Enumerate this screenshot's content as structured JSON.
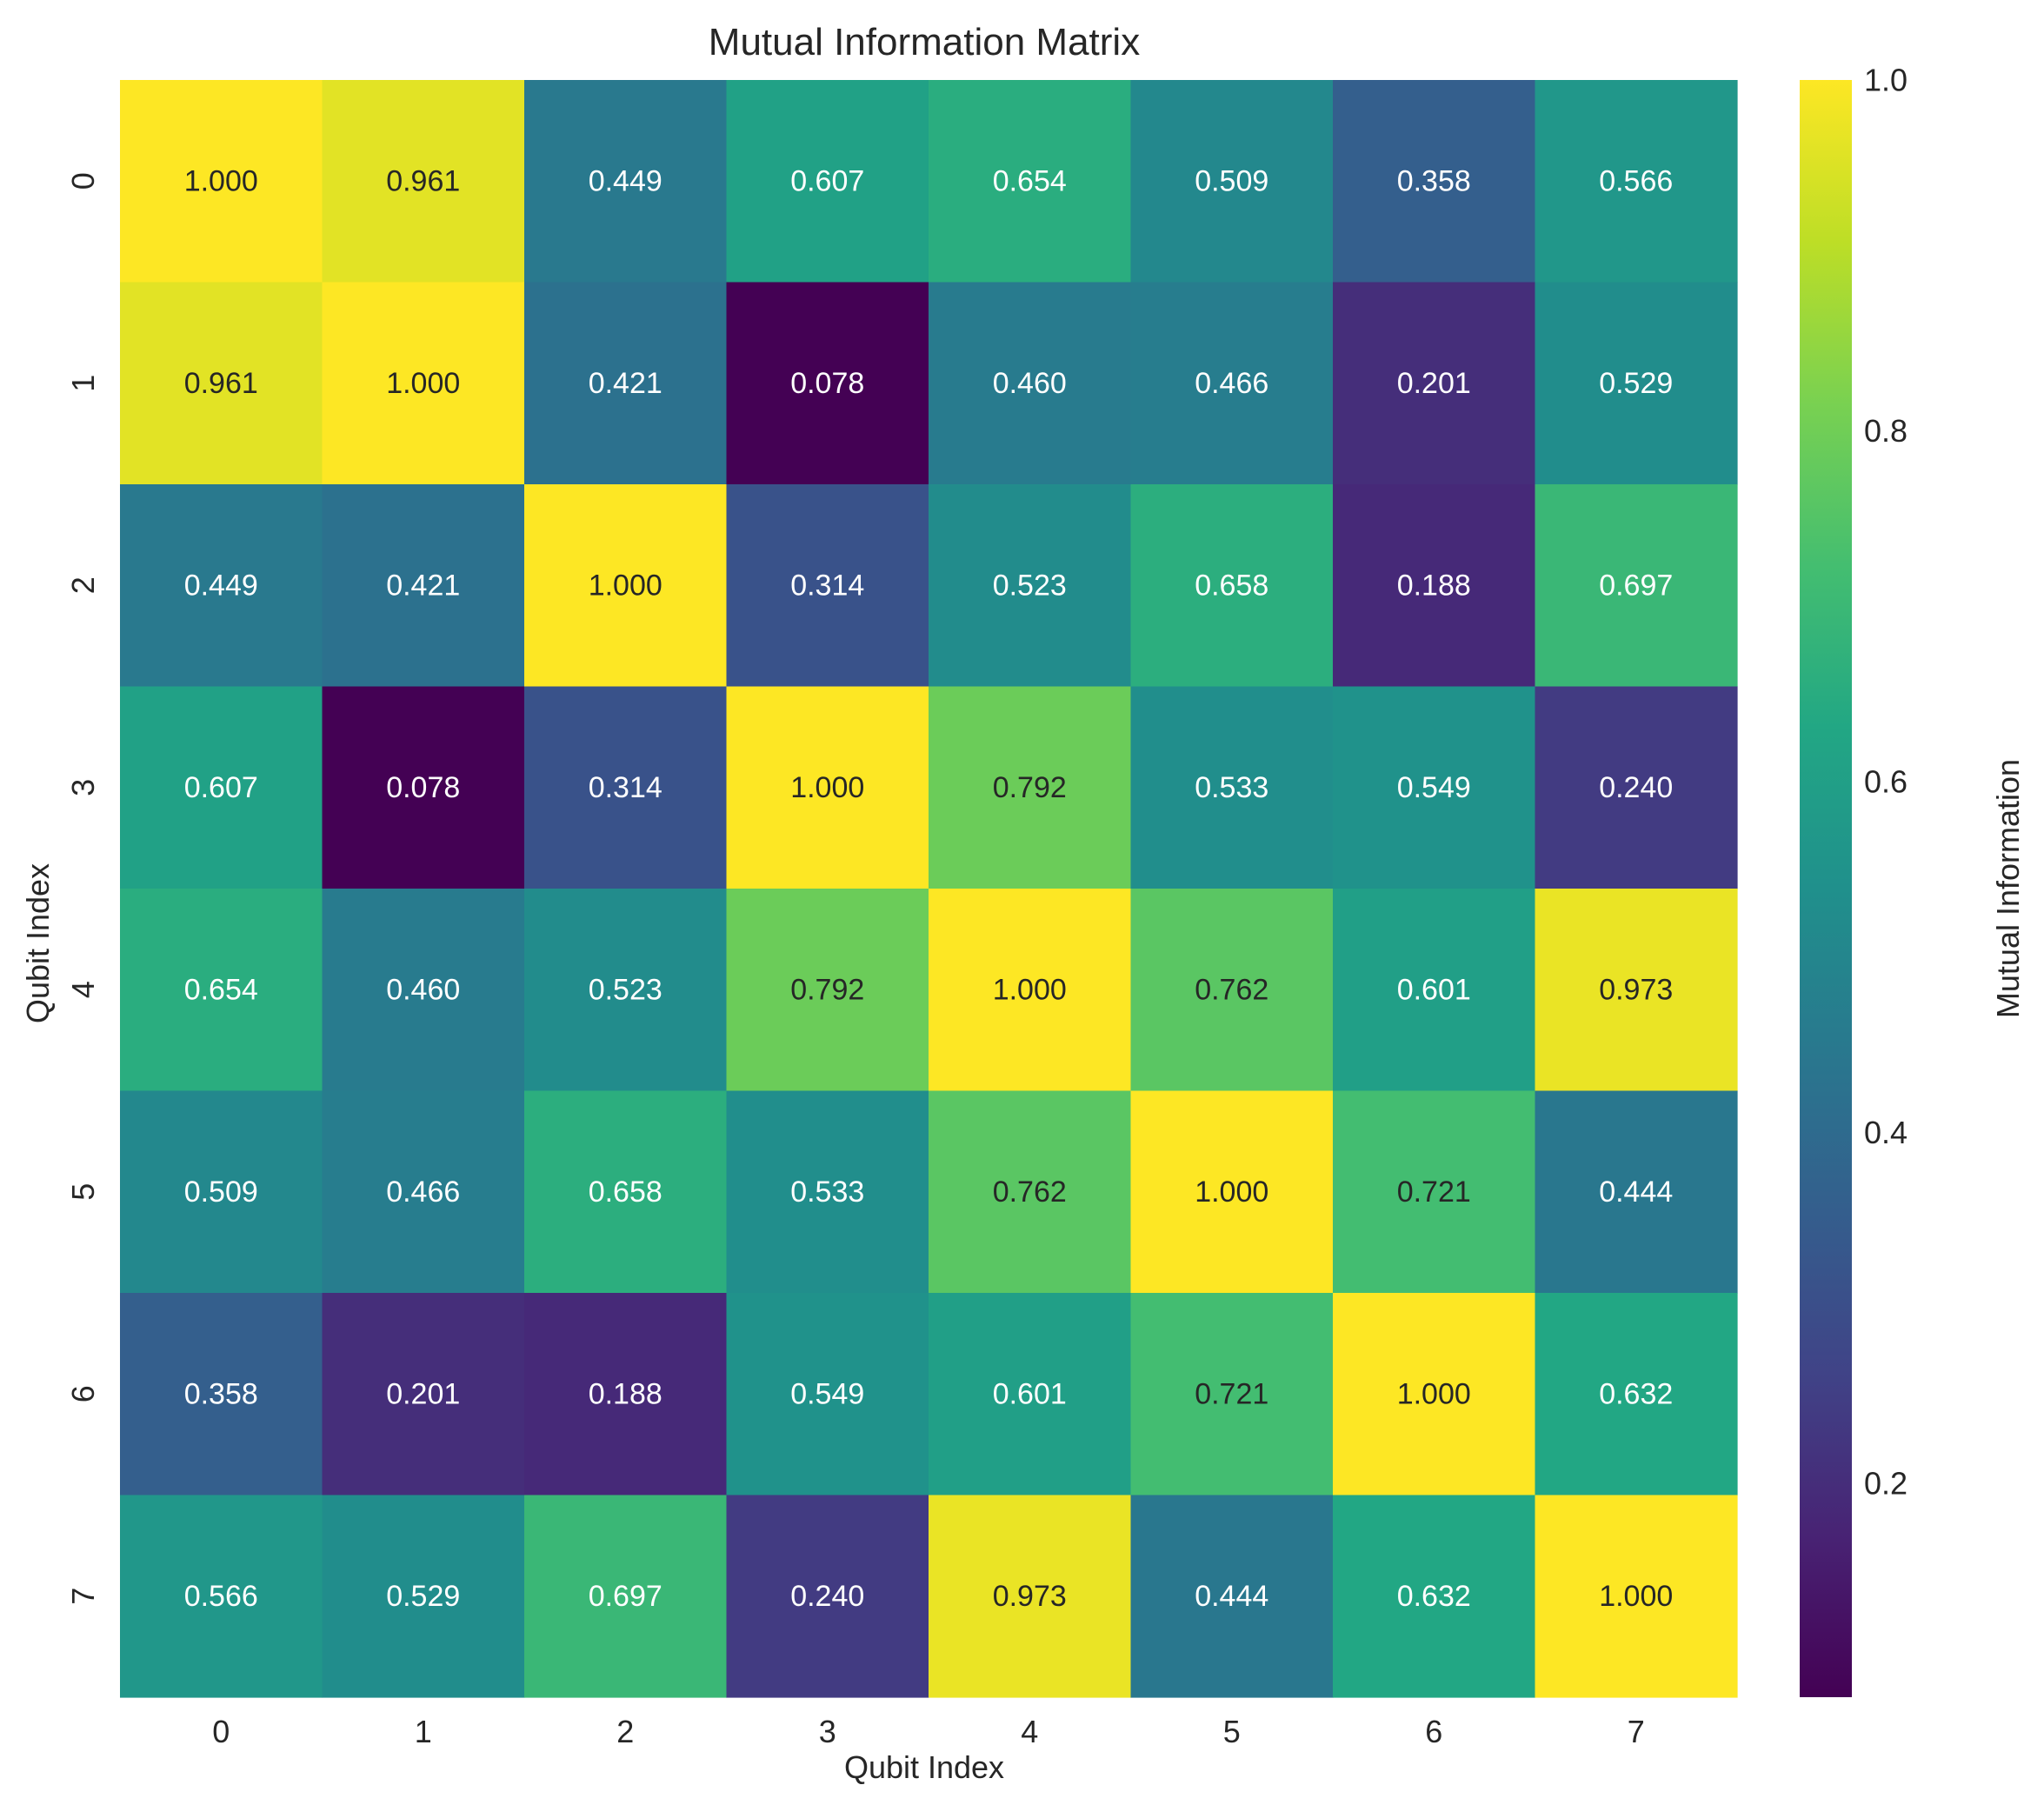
{
  "chart_data": {
    "type": "heatmap",
    "title": "Mutual Information Matrix",
    "xlabel": "Qubit Index",
    "ylabel": "Qubit Index",
    "x_categories": [
      "0",
      "1",
      "2",
      "3",
      "4",
      "5",
      "6",
      "7"
    ],
    "y_categories": [
      "0",
      "1",
      "2",
      "3",
      "4",
      "5",
      "6",
      "7"
    ],
    "values": [
      [
        1.0,
        0.961,
        0.449,
        0.607,
        0.654,
        0.509,
        0.358,
        0.566
      ],
      [
        0.961,
        1.0,
        0.421,
        0.078,
        0.46,
        0.466,
        0.201,
        0.529
      ],
      [
        0.449,
        0.421,
        1.0,
        0.314,
        0.523,
        0.658,
        0.188,
        0.697
      ],
      [
        0.607,
        0.078,
        0.314,
        1.0,
        0.792,
        0.533,
        0.549,
        0.24
      ],
      [
        0.654,
        0.46,
        0.523,
        0.792,
        1.0,
        0.762,
        0.601,
        0.973
      ],
      [
        0.509,
        0.466,
        0.658,
        0.533,
        0.762,
        1.0,
        0.721,
        0.444
      ],
      [
        0.358,
        0.201,
        0.188,
        0.549,
        0.601,
        0.721,
        1.0,
        0.632
      ],
      [
        0.566,
        0.529,
        0.697,
        0.24,
        0.973,
        0.444,
        0.632,
        1.0
      ]
    ],
    "value_format": "0.000",
    "colormap": "viridis",
    "vmin": 0.078,
    "vmax": 1.0,
    "colorbar": {
      "label": "Mutual Information",
      "ticks": [
        0.2,
        0.4,
        0.6,
        0.8,
        1.0
      ],
      "tick_labels": [
        "0.2",
        "0.4",
        "0.6",
        "0.8",
        "1.0"
      ]
    },
    "grid": false,
    "legend": "colorbar-right"
  }
}
